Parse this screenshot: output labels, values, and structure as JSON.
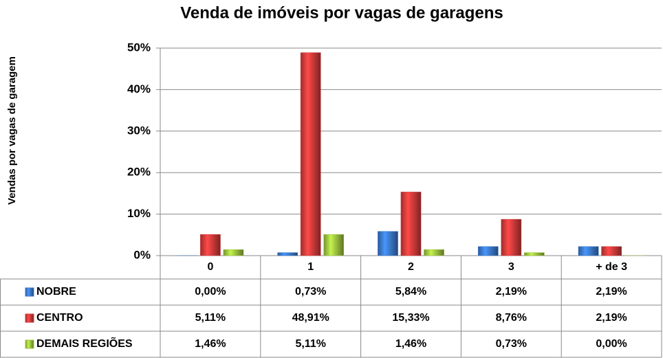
{
  "chart_data": {
    "type": "bar",
    "title": "Venda de imóveis por vagas de garagens",
    "y_label": "Vendas por vagas de garagem",
    "categories": [
      "0",
      "1",
      "2",
      "3",
      "+ de 3"
    ],
    "series": [
      {
        "name": "NOBRE",
        "color": "#3a78c9",
        "values": [
          0,
          0.73,
          5.84,
          2.19,
          2.19
        ],
        "value_labels": [
          "0,00%",
          "0,73%",
          "5,84%",
          "2,19%",
          "2,19%"
        ]
      },
      {
        "name": "CENTRO",
        "color": "#d23a3a",
        "values": [
          5.11,
          48.91,
          15.33,
          8.76,
          2.19
        ],
        "value_labels": [
          "5,11%",
          "48,91%",
          "15,33%",
          "8,76%",
          "2,19%"
        ]
      },
      {
        "name": "DEMAIS REGIÕES",
        "color": "#9dc23e",
        "values": [
          1.46,
          5.11,
          1.46,
          0.73,
          0
        ],
        "value_labels": [
          "1,46%",
          "5,11%",
          "1,46%",
          "0,73%",
          "0,00%"
        ]
      }
    ],
    "ylim": [
      0,
      50
    ],
    "yticks": [
      {
        "value": 0,
        "label": "0%"
      },
      {
        "value": 10,
        "label": "10%"
      },
      {
        "value": 20,
        "label": "20%"
      },
      {
        "value": 30,
        "label": "30%"
      },
      {
        "value": 40,
        "label": "40%"
      },
      {
        "value": 50,
        "label": "50%"
      }
    ],
    "grid": true
  }
}
